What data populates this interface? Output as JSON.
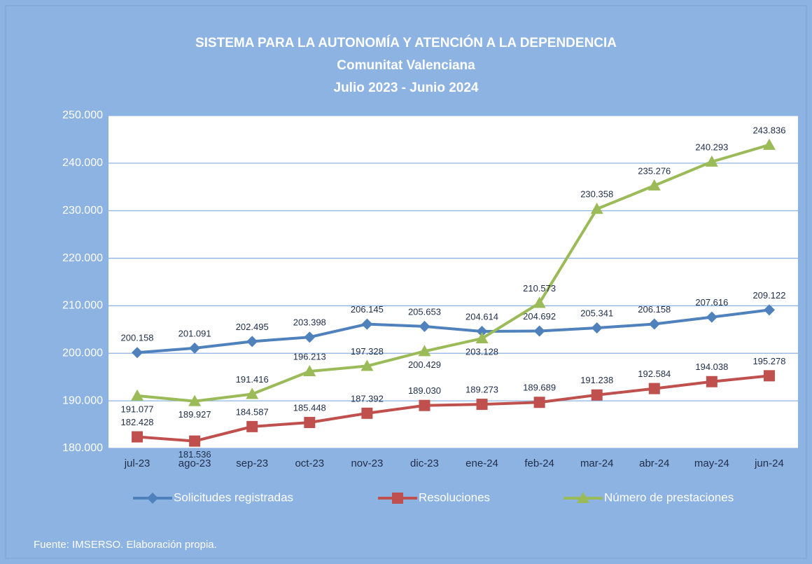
{
  "chart_data": {
    "type": "line",
    "title": "SISTEMA PARA LA AUTONOMÍA Y ATENCIÓN A LA DEPENDENCIA",
    "subtitle_lines": [
      "Comunitat Valenciana",
      "Julio 2023 - Junio 2024"
    ],
    "categories": [
      "jul-23",
      "ago-23",
      "sep-23",
      "oct-23",
      "nov-23",
      "dic-23",
      "ene-24",
      "feb-24",
      "mar-24",
      "abr-24",
      "may-24",
      "jun-24"
    ],
    "series": [
      {
        "name": "Solicitudes registradas",
        "color": "#4F81BD",
        "marker": "diamond",
        "values": [
          200158,
          201091,
          202495,
          203398,
          206145,
          205653,
          204614,
          204692,
          205341,
          206158,
          207616,
          209122
        ],
        "value_labels": [
          "200.158",
          "201.091",
          "202.495",
          "203.398",
          "206.145",
          "205.653",
          "204.614",
          "204.692",
          "205.341",
          "206.158",
          "207.616",
          "209.122"
        ]
      },
      {
        "name": "Resoluciones",
        "color": "#C0504D",
        "marker": "square",
        "values": [
          182428,
          181536,
          184587,
          185448,
          187392,
          189030,
          189273,
          189689,
          191238,
          192584,
          194038,
          195278
        ],
        "value_labels": [
          "182.428",
          "181.536",
          "184.587",
          "185.448",
          "187.392",
          "189.030",
          "189.273",
          "189.689",
          "191.238",
          "192.584",
          "194.038",
          "195.278"
        ]
      },
      {
        "name": "Número de prestaciones",
        "color": "#9BBB59",
        "marker": "triangle",
        "values": [
          191077,
          189927,
          191416,
          196213,
          197328,
          200429,
          203128,
          210573,
          230358,
          235276,
          240293,
          243836
        ],
        "value_labels": [
          "191.077",
          "189.927",
          "191.416",
          "196.213",
          "197.328",
          "200.429",
          "203.128",
          "210.573",
          "230.358",
          "235.276",
          "240.293",
          "243.836"
        ]
      }
    ],
    "ylim": [
      180000,
      250000
    ],
    "yticks": [
      {
        "value": 180000,
        "label": "180.000"
      },
      {
        "value": 190000,
        "label": "190.000"
      },
      {
        "value": 200000,
        "label": "200.000"
      },
      {
        "value": 210000,
        "label": "210.000"
      },
      {
        "value": 220000,
        "label": "220.000"
      },
      {
        "value": 230000,
        "label": "230.000"
      },
      {
        "value": 240000,
        "label": "240.000"
      },
      {
        "value": 250000,
        "label": "250.000"
      }
    ],
    "grid": true,
    "legend": "bottom",
    "source": "Fuente: IMSERSO. Elaboración propia."
  }
}
